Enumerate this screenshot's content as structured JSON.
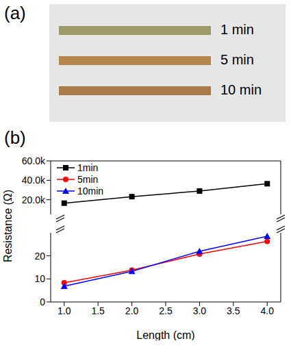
{
  "photo": {
    "label": "(a)",
    "strips": [
      "1 min",
      "5 min",
      "10 min"
    ]
  },
  "panel_label": "(b)",
  "chart_data": [
    {
      "type": "line",
      "y_label": "Resistance (Ω)",
      "x": [
        1,
        2,
        3,
        4
      ],
      "series": [
        {
          "name": "1min",
          "color": "#000000",
          "marker": "square",
          "values": [
            16500,
            23200,
            29000,
            36500
          ]
        }
      ],
      "xlim": [
        0.8,
        4.2
      ],
      "ylim": [
        5000,
        60000
      ],
      "yticks": [
        {
          "value": 20000,
          "label": "20.0k"
        },
        {
          "value": 40000,
          "label": "40.0k"
        },
        {
          "value": 60000,
          "label": "60.0k"
        }
      ],
      "legend": "upper left",
      "tick_labels": "y"
    },
    {
      "type": "line",
      "x_label": "Length (cm)",
      "x": [
        1,
        2,
        3,
        4
      ],
      "series": [
        {
          "name": "5min",
          "color": "#ff0000",
          "marker": "circle",
          "values": [
            8.3,
            13.8,
            20.8,
            26.3
          ]
        },
        {
          "name": "10min",
          "color": "#0000ff",
          "marker": "triangle",
          "values": [
            6.8,
            13.3,
            22.0,
            28.5
          ]
        }
      ],
      "xlim": [
        0.8,
        4.2
      ],
      "xticks": [
        {
          "value": 1,
          "label": "1.0"
        },
        {
          "value": 1.5,
          "label": "1.5"
        },
        {
          "value": 2,
          "label": "2.0"
        },
        {
          "value": 2.5,
          "label": "2.5"
        },
        {
          "value": 3,
          "label": "3.0"
        },
        {
          "value": 3.5,
          "label": "3.5"
        },
        {
          "value": 4,
          "label": "4.0"
        }
      ],
      "ylim": [
        0,
        30
      ],
      "yticks": [
        0,
        10,
        20
      ]
    }
  ]
}
